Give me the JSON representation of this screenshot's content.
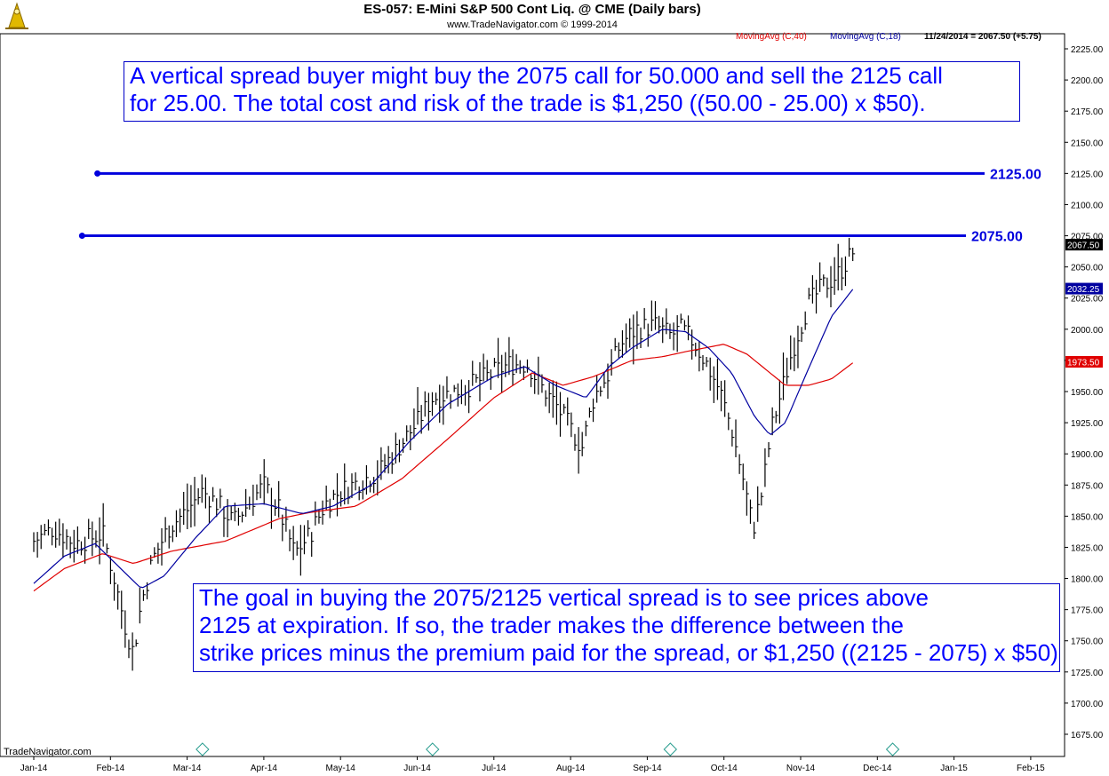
{
  "header": {
    "title": "ES-057:  E-Mini S&P 500 Cont Liq. @ CME  (Daily bars)",
    "subtitle": "www.TradeNavigator.com © 1999-2014",
    "legend": {
      "ma40": "MovingAvg (C,40)",
      "ma18": "MovingAvg (C,18)",
      "last": "11/24/2014 = 2067.50 (+5.75)"
    }
  },
  "notes": {
    "top_line1": "A vertical spread buyer might buy the 2075 call for 50.000 and sell the 2125 call",
    "top_line2": "for 25.00.  The total cost and risk of the trade is  $1,250 ((50.00 - 25.00) x $50).",
    "bottom_line1": "The goal in buying  the 2075/2125 vertical spread is to see prices above",
    "bottom_line2": "2125 at expiration. If so, the trader makes the difference between the",
    "bottom_line3": "strike prices minus the premium paid for the spread, or $1,250 ((2125 - 2075) x $50)."
  },
  "watermark": "TradeNavigator.com",
  "colors": {
    "ma40": "#e00000",
    "ma18": "#0000a0",
    "strike": "#0000dd",
    "note_text": "#0000ff",
    "bars": "#000000"
  },
  "chart_data": {
    "type": "line",
    "title": "ES-057:  E-Mini S&P 500 Cont Liq. @ CME  (Daily bars)",
    "ylim": [
      1665,
      2232
    ],
    "y_ticks": [
      "2225.00",
      "2200.00",
      "2175.00",
      "2150.00",
      "2125.00",
      "2100.00",
      "2075.00",
      "2050.00",
      "2025.00",
      "2000.00",
      "1975.00",
      "1950.00",
      "1925.00",
      "1900.00",
      "1875.00",
      "1850.00",
      "1825.00",
      "1800.00",
      "1775.00",
      "1750.00",
      "1725.00",
      "1700.00",
      "1675.00"
    ],
    "x_labels": [
      "Jan-14",
      "Feb-14",
      "Mar-14",
      "Apr-14",
      "May-14",
      "Jun-14",
      "Jul-14",
      "Aug-14",
      "Sep-14",
      "Oct-14",
      "Nov-14",
      "Dec-14",
      "Jan-15",
      "Feb-15"
    ],
    "price_tags": [
      {
        "label": "2067.50",
        "value": 2067.5,
        "color": "#000000"
      },
      {
        "label": "2032.25",
        "value": 2032.25,
        "color": "#0000a0"
      },
      {
        "label": "1973.50",
        "value": 1973.5,
        "color": "#e00000"
      }
    ],
    "strike_lines": [
      {
        "label": "2125.00",
        "value": 2125,
        "start_month": 0.83
      },
      {
        "label": "2075.00",
        "value": 2075,
        "start_month": 0.63
      }
    ],
    "price_keypoints": [
      [
        0.0,
        1830
      ],
      [
        0.25,
        1840
      ],
      [
        0.55,
        1828
      ],
      [
        0.9,
        1836
      ],
      [
        1.05,
        1800
      ],
      [
        1.2,
        1760
      ],
      [
        1.3,
        1740
      ],
      [
        1.4,
        1780
      ],
      [
        1.55,
        1815
      ],
      [
        1.75,
        1840
      ],
      [
        2.0,
        1855
      ],
      [
        2.2,
        1870
      ],
      [
        2.4,
        1860
      ],
      [
        2.6,
        1845
      ],
      [
        2.8,
        1860
      ],
      [
        3.0,
        1875
      ],
      [
        3.2,
        1855
      ],
      [
        3.4,
        1820
      ],
      [
        3.6,
        1835
      ],
      [
        3.8,
        1860
      ],
      [
        4.0,
        1870
      ],
      [
        4.25,
        1878
      ],
      [
        4.5,
        1885
      ],
      [
        4.75,
        1905
      ],
      [
        5.0,
        1925
      ],
      [
        5.2,
        1945
      ],
      [
        5.4,
        1948
      ],
      [
        5.7,
        1955
      ],
      [
        6.0,
        1965
      ],
      [
        6.2,
        1972
      ],
      [
        6.45,
        1972
      ],
      [
        6.6,
        1955
      ],
      [
        6.8,
        1940
      ],
      [
        7.0,
        1920
      ],
      [
        7.15,
        1905
      ],
      [
        7.3,
        1945
      ],
      [
        7.5,
        1965
      ],
      [
        7.65,
        1988
      ],
      [
        7.85,
        2000
      ],
      [
        8.1,
        2003
      ],
      [
        8.3,
        1995
      ],
      [
        8.45,
        2000
      ],
      [
        8.6,
        1990
      ],
      [
        8.75,
        1975
      ],
      [
        8.95,
        1950
      ],
      [
        9.1,
        1920
      ],
      [
        9.25,
        1880
      ],
      [
        9.38,
        1840
      ],
      [
        9.5,
        1870
      ],
      [
        9.62,
        1920
      ],
      [
        9.75,
        1950
      ],
      [
        9.9,
        1985
      ],
      [
        10.1,
        2020
      ],
      [
        10.3,
        2035
      ],
      [
        10.5,
        2045
      ],
      [
        10.68,
        2062
      ]
    ],
    "series": [
      {
        "name": "MovingAvg (C,40)",
        "color": "#e00000",
        "points": [
          [
            0,
            1790
          ],
          [
            0.4,
            1808
          ],
          [
            0.9,
            1820
          ],
          [
            1.3,
            1812
          ],
          [
            1.8,
            1822
          ],
          [
            2.5,
            1830
          ],
          [
            3.2,
            1848
          ],
          [
            3.6,
            1853
          ],
          [
            4.2,
            1858
          ],
          [
            4.8,
            1880
          ],
          [
            5.4,
            1912
          ],
          [
            6.0,
            1945
          ],
          [
            6.5,
            1965
          ],
          [
            6.9,
            1955
          ],
          [
            7.3,
            1962
          ],
          [
            7.8,
            1975
          ],
          [
            8.2,
            1978
          ],
          [
            8.5,
            1982
          ],
          [
            9.0,
            1988
          ],
          [
            9.3,
            1980
          ],
          [
            9.6,
            1965
          ],
          [
            9.8,
            1955
          ],
          [
            10.1,
            1955
          ],
          [
            10.4,
            1960
          ],
          [
            10.68,
            1973
          ]
        ]
      },
      {
        "name": "MovingAvg (C,18)",
        "color": "#0000a0",
        "points": [
          [
            0,
            1796
          ],
          [
            0.4,
            1818
          ],
          [
            0.8,
            1828
          ],
          [
            1.1,
            1810
          ],
          [
            1.4,
            1792
          ],
          [
            1.7,
            1802
          ],
          [
            2.1,
            1832
          ],
          [
            2.5,
            1858
          ],
          [
            3.0,
            1860
          ],
          [
            3.5,
            1852
          ],
          [
            3.9,
            1858
          ],
          [
            4.4,
            1875
          ],
          [
            4.9,
            1910
          ],
          [
            5.4,
            1940
          ],
          [
            6.0,
            1962
          ],
          [
            6.4,
            1970
          ],
          [
            6.8,
            1955
          ],
          [
            7.2,
            1945
          ],
          [
            7.5,
            1970
          ],
          [
            7.8,
            1985
          ],
          [
            8.2,
            2000
          ],
          [
            8.5,
            1998
          ],
          [
            8.8,
            1985
          ],
          [
            9.1,
            1965
          ],
          [
            9.4,
            1930
          ],
          [
            9.6,
            1915
          ],
          [
            9.8,
            1925
          ],
          [
            10.1,
            1968
          ],
          [
            10.4,
            2010
          ],
          [
            10.68,
            2032
          ]
        ]
      }
    ],
    "x_axis": "months since Jan-14",
    "grid": false,
    "legend_placement": "top-right"
  }
}
